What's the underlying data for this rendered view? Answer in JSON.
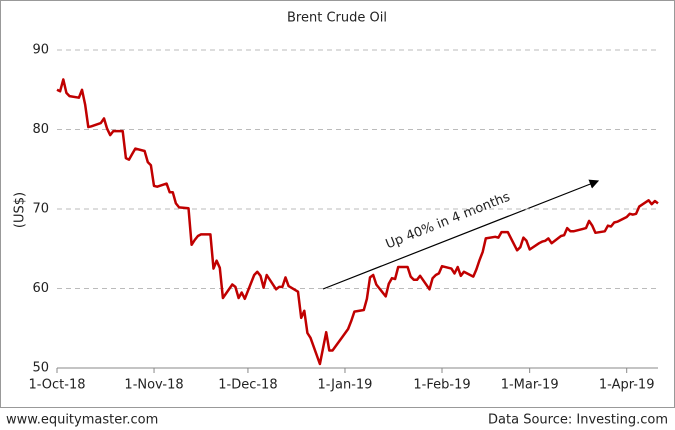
{
  "chart_data": {
    "type": "line",
    "title": "Brent Crude Oil",
    "ylabel": "(US$)",
    "annotation": "Up 40% in 4 months",
    "footer_left": "www.equitymaster.com",
    "footer_right": "Data Source: Investing.com",
    "xlim": [
      "2018-10-01",
      "2019-04-11"
    ],
    "xticks": [
      {
        "value": "2018-10-01",
        "label": "1-Oct-18"
      },
      {
        "value": "2018-11-01",
        "label": "1-Nov-18"
      },
      {
        "value": "2018-12-01",
        "label": "1-Dec-18"
      },
      {
        "value": "2019-01-01",
        "label": "1-Jan-19"
      },
      {
        "value": "2019-02-01",
        "label": "1-Feb-19"
      },
      {
        "value": "2019-03-01",
        "label": "1-Mar-19"
      },
      {
        "value": "2019-04-01",
        "label": "1-Apr-19"
      }
    ],
    "ylim": [
      50,
      90
    ],
    "yticks": [
      50,
      60,
      70,
      80,
      90
    ],
    "grid": true,
    "x": [
      "2018-10-01",
      "2018-10-02",
      "2018-10-03",
      "2018-10-04",
      "2018-10-05",
      "2018-10-08",
      "2018-10-09",
      "2018-10-10",
      "2018-10-11",
      "2018-10-12",
      "2018-10-15",
      "2018-10-16",
      "2018-10-17",
      "2018-10-18",
      "2018-10-19",
      "2018-10-22",
      "2018-10-23",
      "2018-10-24",
      "2018-10-25",
      "2018-10-26",
      "2018-10-29",
      "2018-10-30",
      "2018-10-31",
      "2018-11-01",
      "2018-11-02",
      "2018-11-05",
      "2018-11-06",
      "2018-11-07",
      "2018-11-08",
      "2018-11-09",
      "2018-11-12",
      "2018-11-13",
      "2018-11-14",
      "2018-11-15",
      "2018-11-16",
      "2018-11-19",
      "2018-11-20",
      "2018-11-21",
      "2018-11-22",
      "2018-11-23",
      "2018-11-26",
      "2018-11-27",
      "2018-11-28",
      "2018-11-29",
      "2018-11-30",
      "2018-12-03",
      "2018-12-04",
      "2018-12-05",
      "2018-12-06",
      "2018-12-07",
      "2018-12-10",
      "2018-12-11",
      "2018-12-12",
      "2018-12-13",
      "2018-12-14",
      "2018-12-17",
      "2018-12-18",
      "2018-12-19",
      "2018-12-20",
      "2018-12-21",
      "2018-12-24",
      "2018-12-26",
      "2018-12-27",
      "2018-12-28",
      "2018-12-31",
      "2019-01-02",
      "2019-01-03",
      "2019-01-04",
      "2019-01-07",
      "2019-01-08",
      "2019-01-09",
      "2019-01-10",
      "2019-01-11",
      "2019-01-14",
      "2019-01-15",
      "2019-01-16",
      "2019-01-17",
      "2019-01-18",
      "2019-01-21",
      "2019-01-22",
      "2019-01-23",
      "2019-01-24",
      "2019-01-25",
      "2019-01-28",
      "2019-01-29",
      "2019-01-30",
      "2019-01-31",
      "2019-02-01",
      "2019-02-04",
      "2019-02-05",
      "2019-02-06",
      "2019-02-07",
      "2019-02-08",
      "2019-02-11",
      "2019-02-12",
      "2019-02-13",
      "2019-02-14",
      "2019-02-15",
      "2019-02-18",
      "2019-02-19",
      "2019-02-20",
      "2019-02-21",
      "2019-02-22",
      "2019-02-25",
      "2019-02-26",
      "2019-02-27",
      "2019-02-28",
      "2019-03-01",
      "2019-03-04",
      "2019-03-05",
      "2019-03-06",
      "2019-03-07",
      "2019-03-08",
      "2019-03-11",
      "2019-03-12",
      "2019-03-13",
      "2019-03-14",
      "2019-03-15",
      "2019-03-18",
      "2019-03-19",
      "2019-03-20",
      "2019-03-21",
      "2019-03-22",
      "2019-03-25",
      "2019-03-26",
      "2019-03-27",
      "2019-03-28",
      "2019-03-29",
      "2019-04-01",
      "2019-04-02",
      "2019-04-03",
      "2019-04-04",
      "2019-04-05",
      "2019-04-08",
      "2019-04-09",
      "2019-04-10",
      "2019-04-11"
    ],
    "series": [
      {
        "name": "Brent",
        "color": "#c00000",
        "values": [
          85,
          84.8,
          86.3,
          84.6,
          84.2,
          84.0,
          85.0,
          83.1,
          80.3,
          80.4,
          80.8,
          81.4,
          80.1,
          79.3,
          79.8,
          79.8,
          76.4,
          76.2,
          76.9,
          77.6,
          77.3,
          75.9,
          75.5,
          72.9,
          72.8,
          73.2,
          72.1,
          72.1,
          70.7,
          70.2,
          70.1,
          65.5,
          66.1,
          66.6,
          66.8,
          66.8,
          62.5,
          63.5,
          62.6,
          58.8,
          60.5,
          60.2,
          58.8,
          59.5,
          58.7,
          61.7,
          62.1,
          61.6,
          60.1,
          61.7,
          59.9,
          60.2,
          60.2,
          61.4,
          60.3,
          59.6,
          56.3,
          57.2,
          54.4,
          53.8,
          50.5,
          54.5,
          52.2,
          52.2,
          53.8,
          54.9,
          55.9,
          57.1,
          57.3,
          58.7,
          61.4,
          61.7,
          60.5,
          59.0,
          60.6,
          61.3,
          61.2,
          62.7,
          62.7,
          61.5,
          61.1,
          61.1,
          61.6,
          59.9,
          61.3,
          61.7,
          61.9,
          62.8,
          62.5,
          61.9,
          62.7,
          61.6,
          62.1,
          61.5,
          62.4,
          63.6,
          64.6,
          66.3,
          66.5,
          66.4,
          67.1,
          67.1,
          67.1,
          64.8,
          65.2,
          66.4,
          66.0,
          64.9,
          65.7,
          65.9,
          66.0,
          66.3,
          65.7,
          66.6,
          66.7,
          67.6,
          67.2,
          67.2,
          67.5,
          67.6,
          68.5,
          67.9,
          67.0,
          67.2,
          67.9,
          67.8,
          68.3,
          68.4,
          69.0,
          69.4,
          69.3,
          69.4,
          70.3,
          71.1,
          70.6,
          71.0,
          70.7
        ]
      }
    ]
  }
}
